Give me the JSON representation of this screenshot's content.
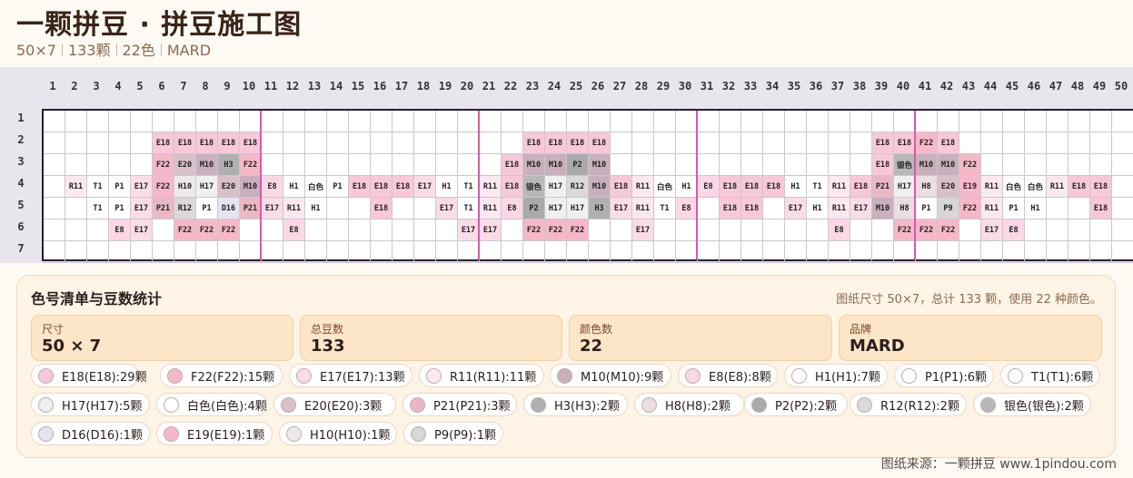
{
  "header": {
    "title": "一颗拼豆 · 拼豆施工图",
    "dims": "50×7",
    "count": "133颗",
    "colors": "22色",
    "brand": "MARD"
  },
  "palette": {
    "E18": "#f8c8d8",
    "F22": "#f6b8c8",
    "E17": "#fadce6",
    "R11": "#fde8f0",
    "M10": "#c9b0bc",
    "E8": "#fdd7e6",
    "H1": "#ffffff",
    "P1": "#ffffff",
    "T1": "#ffffff",
    "H17": "#f1f0f0",
    "白色": "#ffffff",
    "E20": "#d9c0c8",
    "P21": "#eab8c4",
    "H3": "#b0b0b0",
    "H8": "#ebdde0",
    "P2": "#aaaaaa",
    "R12": "#dcd8d8",
    "银色": "#b8b8b8",
    "D16": "#e6e4f0",
    "E19": "#f6b8cc",
    "H10": "#efeaea",
    "P9": "#d8d6d6"
  },
  "grid": {
    "cols": 50,
    "rows": 7,
    "col_labels": [
      "1",
      "2",
      "3",
      "4",
      "5",
      "6",
      "7",
      "8",
      "9",
      "10",
      "11",
      "12",
      "13",
      "14",
      "15",
      "16",
      "17",
      "18",
      "19",
      "20",
      "21",
      "22",
      "23",
      "24",
      "25",
      "26",
      "27",
      "28",
      "29",
      "30",
      "31",
      "32",
      "33",
      "34",
      "35",
      "36",
      "37",
      "38",
      "39",
      "40",
      "41",
      "42",
      "43",
      "44",
      "45",
      "46",
      "47",
      "48",
      "49",
      "50"
    ],
    "row_labels": [
      "1",
      "2",
      "3",
      "4",
      "5",
      "6",
      "7"
    ],
    "cells": [
      [
        null,
        null,
        null,
        null,
        null,
        null,
        null,
        null,
        null,
        null,
        null,
        null,
        null,
        null,
        null,
        null,
        null,
        null,
        null,
        null,
        null,
        null,
        null,
        null,
        null,
        null,
        null,
        null,
        null,
        null,
        null,
        null,
        null,
        null,
        null,
        null,
        null,
        null,
        null,
        null,
        null,
        null,
        null,
        null,
        null,
        null,
        null,
        null,
        null,
        null
      ],
      [
        null,
        null,
        null,
        null,
        null,
        "E18",
        "E18",
        "E18",
        "E18",
        "E18",
        null,
        null,
        null,
        null,
        null,
        null,
        null,
        null,
        null,
        null,
        null,
        null,
        "E18",
        "E18",
        "E18",
        "E18",
        null,
        null,
        null,
        null,
        null,
        null,
        null,
        null,
        null,
        null,
        null,
        null,
        "E18",
        "E18",
        "F22",
        "E18",
        null,
        null,
        null,
        null,
        null,
        null,
        null,
        null
      ],
      [
        null,
        null,
        null,
        null,
        null,
        "F22",
        "E20",
        "M10",
        "H3",
        "F22",
        null,
        null,
        null,
        null,
        null,
        null,
        null,
        null,
        null,
        null,
        null,
        "E18",
        "M10",
        "M10",
        "P2",
        "M10",
        null,
        null,
        null,
        null,
        null,
        null,
        null,
        null,
        null,
        null,
        null,
        null,
        "E18",
        "银色",
        "M10",
        "M10",
        "F22",
        null,
        null,
        null,
        null,
        null,
        null,
        null
      ],
      [
        null,
        "R11",
        "T1",
        "P1",
        "E17",
        "F22",
        "H10",
        "H17",
        "E20",
        "M10",
        "E8",
        "H1",
        "白色",
        "P1",
        "E18",
        "E18",
        "E18",
        "E17",
        "H1",
        "T1",
        "R11",
        "E18",
        "银色",
        "H17",
        "R12",
        "M10",
        "E18",
        "R11",
        "白色",
        "H1",
        "E8",
        "E18",
        "E18",
        "E18",
        "H1",
        "T1",
        "R11",
        "E18",
        "P21",
        "H17",
        "H8",
        "E20",
        "E19",
        "R11",
        "白色",
        "白色",
        "R11",
        "E18",
        "E18",
        null
      ],
      [
        null,
        null,
        "T1",
        "P1",
        "E17",
        "P21",
        "R12",
        "P1",
        "D16",
        "P21",
        "E17",
        "R11",
        "H1",
        null,
        null,
        "E18",
        null,
        null,
        "E17",
        "T1",
        "R11",
        "E8",
        "P2",
        "H17",
        "H17",
        "H3",
        "E17",
        "R11",
        "T1",
        "E8",
        null,
        "E18",
        "E18",
        null,
        "E17",
        "H1",
        "R11",
        "E17",
        "M10",
        "H8",
        "P1",
        "P9",
        "F22",
        "R11",
        "P1",
        "H1",
        null,
        null,
        "E18",
        null
      ],
      [
        null,
        null,
        null,
        "E8",
        "E17",
        null,
        "F22",
        "F22",
        "F22",
        null,
        null,
        "E8",
        null,
        null,
        null,
        null,
        null,
        null,
        null,
        "E17",
        "E17",
        null,
        "F22",
        "F22",
        "F22",
        null,
        null,
        "E17",
        null,
        null,
        null,
        null,
        null,
        null,
        null,
        null,
        "E8",
        null,
        null,
        "F22",
        "F22",
        "F22",
        null,
        "E17",
        "E8",
        null,
        null,
        null,
        null,
        null
      ],
      [
        null,
        null,
        null,
        null,
        null,
        null,
        null,
        null,
        null,
        null,
        null,
        null,
        null,
        null,
        null,
        null,
        null,
        null,
        null,
        null,
        null,
        null,
        null,
        null,
        null,
        null,
        null,
        null,
        null,
        null,
        null,
        null,
        null,
        null,
        null,
        null,
        null,
        null,
        null,
        null,
        null,
        null,
        null,
        null,
        null,
        null,
        null,
        null,
        null,
        null
      ]
    ]
  },
  "panel": {
    "title": "色号清单与豆数统计",
    "note": "图纸尺寸 50×7，总计 133 颗，使用 22 种颜色。",
    "stats": [
      {
        "label": "尺寸",
        "value": "50 × 7"
      },
      {
        "label": "总豆数",
        "value": "133"
      },
      {
        "label": "颜色数",
        "value": "22"
      },
      {
        "label": "品牌",
        "value": "MARD"
      }
    ],
    "chips": [
      {
        "code": "E18",
        "text": "E18(E18):29颗"
      },
      {
        "code": "F22",
        "text": "F22(F22):15颗"
      },
      {
        "code": "E17",
        "text": "E17(E17):13颗"
      },
      {
        "code": "R11",
        "text": "R11(R11):11颗"
      },
      {
        "code": "M10",
        "text": "M10(M10):9颗"
      },
      {
        "code": "E8",
        "text": "E8(E8):8颗"
      },
      {
        "code": "H1",
        "text": "H1(H1):7颗"
      },
      {
        "code": "P1",
        "text": "P1(P1):6颗"
      },
      {
        "code": "T1",
        "text": "T1(T1):6颗"
      },
      {
        "code": "H17",
        "text": "H17(H17):5颗"
      },
      {
        "code": "白色",
        "text": "白色(白色):4颗"
      },
      {
        "code": "E20",
        "text": "E20(E20):3颗"
      },
      {
        "code": "P21",
        "text": "P21(P21):3颗"
      },
      {
        "code": "H3",
        "text": "H3(H3):2颗"
      },
      {
        "code": "H8",
        "text": "H8(H8):2颗"
      },
      {
        "code": "P2",
        "text": "P2(P2):2颗"
      },
      {
        "code": "R12",
        "text": "R12(R12):2颗"
      },
      {
        "code": "银色",
        "text": "银色(银色):2颗"
      },
      {
        "code": "D16",
        "text": "D16(D16):1颗"
      },
      {
        "code": "E19",
        "text": "E19(E19):1颗"
      },
      {
        "code": "H10",
        "text": "H10(H10):1颗"
      },
      {
        "code": "P9",
        "text": "P9(P9):1颗"
      }
    ]
  },
  "footer": "图纸来源：一颗拼豆 www.1pindou.com"
}
